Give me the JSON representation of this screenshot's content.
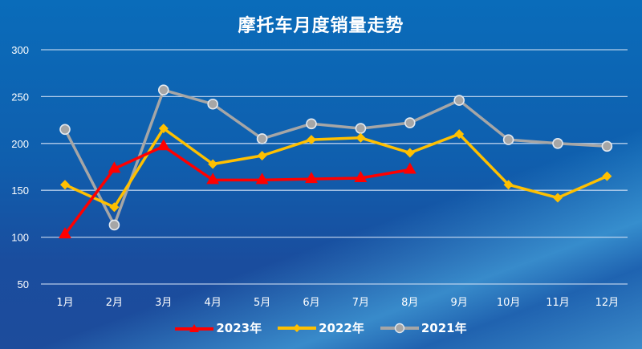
{
  "chart_data": {
    "type": "line",
    "title": "摩托车月度销量走势",
    "xlabel": "",
    "ylabel": "",
    "categories": [
      "1月",
      "2月",
      "3月",
      "4月",
      "5月",
      "6月",
      "7月",
      "8月",
      "9月",
      "10月",
      "11月",
      "12月"
    ],
    "yticks": [
      50,
      100,
      150,
      200,
      250,
      300
    ],
    "ylim": [
      50,
      300
    ],
    "grid": true,
    "legend_position": "bottom",
    "series": [
      {
        "name": "2023年",
        "color": "#ff0000",
        "marker": "triangle",
        "values": [
          103,
          173,
          197,
          161,
          161,
          162,
          163,
          172,
          null,
          null,
          null,
          null
        ]
      },
      {
        "name": "2022年",
        "color": "#ffc000",
        "marker": "diamond",
        "values": [
          156,
          132,
          216,
          178,
          187,
          204,
          206,
          190,
          210,
          156,
          142,
          165
        ]
      },
      {
        "name": "2021年",
        "color": "#a6a6a6",
        "marker": "circle",
        "values": [
          215,
          113,
          257,
          242,
          205,
          221,
          216,
          222,
          246,
          204,
          200,
          197
        ]
      }
    ]
  },
  "legend": [
    "2023年",
    "2022年",
    "2021年"
  ]
}
